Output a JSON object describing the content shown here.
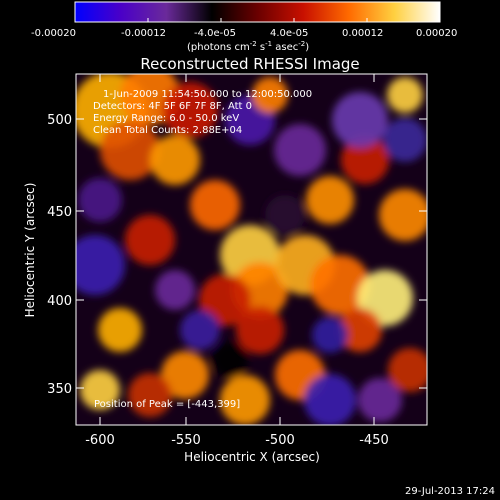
{
  "colorbar": {
    "tick_labels": [
      "-0.00020",
      "-0.00012",
      "-4.0e-05",
      "4.0e-05",
      "0.00012",
      "0.00020"
    ],
    "units_text": "(photons cm",
    "units_exp1": "-2",
    "units_mid": " s",
    "units_exp2": "-1",
    "units_end": " asec",
    "units_exp3": "-2",
    "units_close": ")",
    "min": -0.0002,
    "max": 0.0002,
    "colors": [
      "#0000ff",
      "#4a00c8",
      "#6a2a9a",
      "#000000",
      "#6a0000",
      "#c81000",
      "#ff6a00",
      "#ffd040",
      "#ffffff"
    ]
  },
  "image": {
    "title": "Reconstructed RHESSI Image",
    "time_range": "1-Jun-2009 11:54:50.000 to 12:00:50.000",
    "detectors": "Detectors: 4F 5F 6F 7F 8F, Att 0",
    "energy_range": "Energy Range: 6.0 - 50.0 keV",
    "clean_info": "Clean    Total Counts: 2.88E+04",
    "peak_label": "Position of Peak = [-443,399]",
    "x_axis_label": "Heliocentric X (arcsec)",
    "y_axis_label": "Heliocentric Y (arcsec)",
    "x_ticks": [
      "-600",
      "-550",
      "-500",
      "-450"
    ],
    "y_ticks": [
      "350",
      "400",
      "450",
      "500"
    ],
    "xlim": [
      -612,
      -422
    ],
    "ylim": [
      333,
      524
    ]
  },
  "footer": {
    "timestamp": "29-Jul-2013 17:24"
  }
}
